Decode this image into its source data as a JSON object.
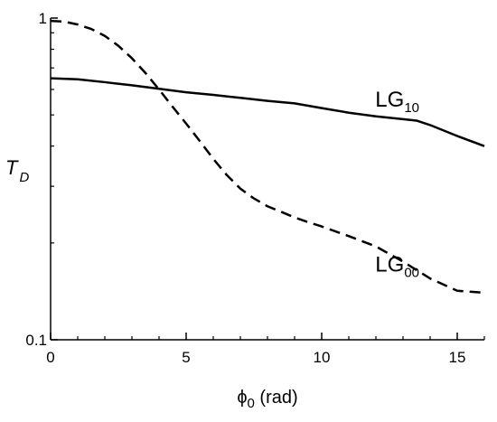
{
  "chart_data": {
    "type": "line",
    "xlabel": {
      "symbol": "ϕ",
      "subscript": "0",
      "unit": " (rad)"
    },
    "ylabel": {
      "symbol": "T",
      "subscript": "D"
    },
    "xlim": [
      0,
      16
    ],
    "ylim": [
      0.1,
      1
    ],
    "yscale": "log",
    "x_ticks": [
      0,
      5,
      10,
      15
    ],
    "x_minor_ticks": [
      1,
      2,
      3,
      4,
      6,
      7,
      8,
      9,
      11,
      12,
      13,
      14,
      16
    ],
    "y_tick_labels": [
      {
        "value": 1,
        "label": "1"
      },
      {
        "value": 0.1,
        "label": "0.1"
      }
    ],
    "y_minor_ticks": [
      0.2,
      0.3,
      0.4,
      0.5,
      0.6,
      0.7,
      0.8,
      0.9
    ],
    "grid": false,
    "series": [
      {
        "style": "solid",
        "x": [
          0,
          1,
          2,
          3,
          4,
          5,
          6,
          7,
          8,
          9,
          10,
          11,
          12,
          13,
          13.5,
          14,
          15,
          16
        ],
        "y": [
          0.65,
          0.645,
          0.632,
          0.618,
          0.603,
          0.588,
          0.577,
          0.565,
          0.553,
          0.543,
          0.525,
          0.508,
          0.495,
          0.485,
          0.48,
          0.465,
          0.43,
          0.4
        ]
      },
      {
        "style": "dashed",
        "x": [
          0,
          0.5,
          1,
          1.5,
          2,
          2.5,
          3,
          3.5,
          4,
          4.5,
          5,
          5.5,
          6,
          6.5,
          7,
          7.5,
          8,
          8.5,
          9,
          9.5,
          10,
          11,
          12,
          13,
          14,
          15,
          16
        ],
        "y": [
          0.98,
          0.975,
          0.955,
          0.925,
          0.88,
          0.82,
          0.75,
          0.675,
          0.6,
          0.53,
          0.47,
          0.415,
          0.365,
          0.325,
          0.295,
          0.275,
          0.26,
          0.25,
          0.24,
          0.232,
          0.225,
          0.21,
          0.195,
          0.175,
          0.155,
          0.142,
          0.14
        ]
      }
    ],
    "annotations": [
      {
        "base": "LG",
        "subscript": "10",
        "x": 13.6,
        "y": 0.53
      },
      {
        "base": "LG",
        "subscript": "00",
        "x": 13.6,
        "y": 0.163
      }
    ]
  }
}
